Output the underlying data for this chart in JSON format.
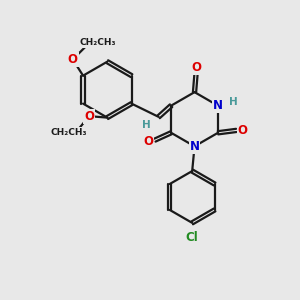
{
  "bg_color": "#e8e8e8",
  "bond_color": "#1a1a1a",
  "bond_width": 1.6,
  "dbo": 0.055,
  "atom_colors": {
    "O": "#dd0000",
    "N": "#0000cc",
    "Cl": "#228b22",
    "C": "#1a1a1a",
    "H": "#4a9a9a"
  },
  "font_size": 8.5,
  "fig_size": [
    3.0,
    3.0
  ],
  "dpi": 100
}
